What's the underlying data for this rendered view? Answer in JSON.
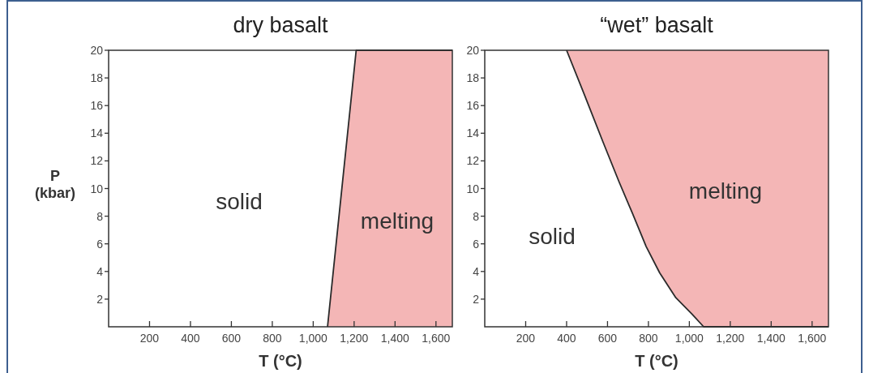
{
  "chart_data": [
    {
      "type": "area",
      "title": "dry basalt",
      "xlabel": "T (°C)",
      "ylabel": "P (kbar)",
      "xlim": [
        0,
        1680
      ],
      "ylim": [
        0,
        20
      ],
      "xticks": [
        200,
        400,
        600,
        800,
        {
          "value": 1000,
          "label": "1,000"
        },
        {
          "value": 1200,
          "label": "1,200"
        },
        {
          "value": 1400,
          "label": "1,400"
        },
        {
          "value": 1600,
          "label": "1,600"
        }
      ],
      "yticks": [
        2,
        4,
        6,
        8,
        10,
        12,
        14,
        16,
        18,
        20
      ],
      "series": [
        {
          "color": "#f4b6b6",
          "x": [
            1070,
            1210,
            1680
          ],
          "values": [
            0,
            20,
            20
          ]
        }
      ],
      "annotations": [
        "solid",
        "melting"
      ]
    },
    {
      "type": "line",
      "title": "“wet” basalt",
      "xlabel": "T (°C)",
      "xlim": [
        0,
        1680
      ],
      "ylim": [
        0,
        20
      ],
      "xticks": [
        200,
        400,
        600,
        800,
        {
          "value": 1000,
          "label": "1,000"
        },
        {
          "value": 1200,
          "label": "1,200"
        },
        {
          "value": 1400,
          "label": "1,400"
        },
        {
          "value": 1600,
          "label": "1,600"
        }
      ],
      "yticks": [
        2,
        4,
        6,
        8,
        10,
        12,
        14,
        16,
        18,
        20
      ],
      "series": [
        {
          "color": "#2a2a2a",
          "x": [
            400,
            484,
            577,
            656,
            722,
            789,
            855,
            934,
            1014,
            1070,
            1680
          ],
          "values": [
            20,
            16.9,
            13.4,
            10.5,
            8.2,
            5.8,
            3.9,
            2.1,
            0.9,
            0,
            0
          ],
          "lower": [
            20,
            16.9,
            13.4,
            10.5,
            8.2,
            5.8,
            3.9,
            2.1,
            0.9,
            0,
            0
          ],
          "upper": [
            20,
            20,
            20,
            20,
            20,
            20,
            20,
            20,
            20,
            20,
            20
          ]
        }
      ],
      "annotations": [
        "solid",
        "melting"
      ]
    }
  ]
}
